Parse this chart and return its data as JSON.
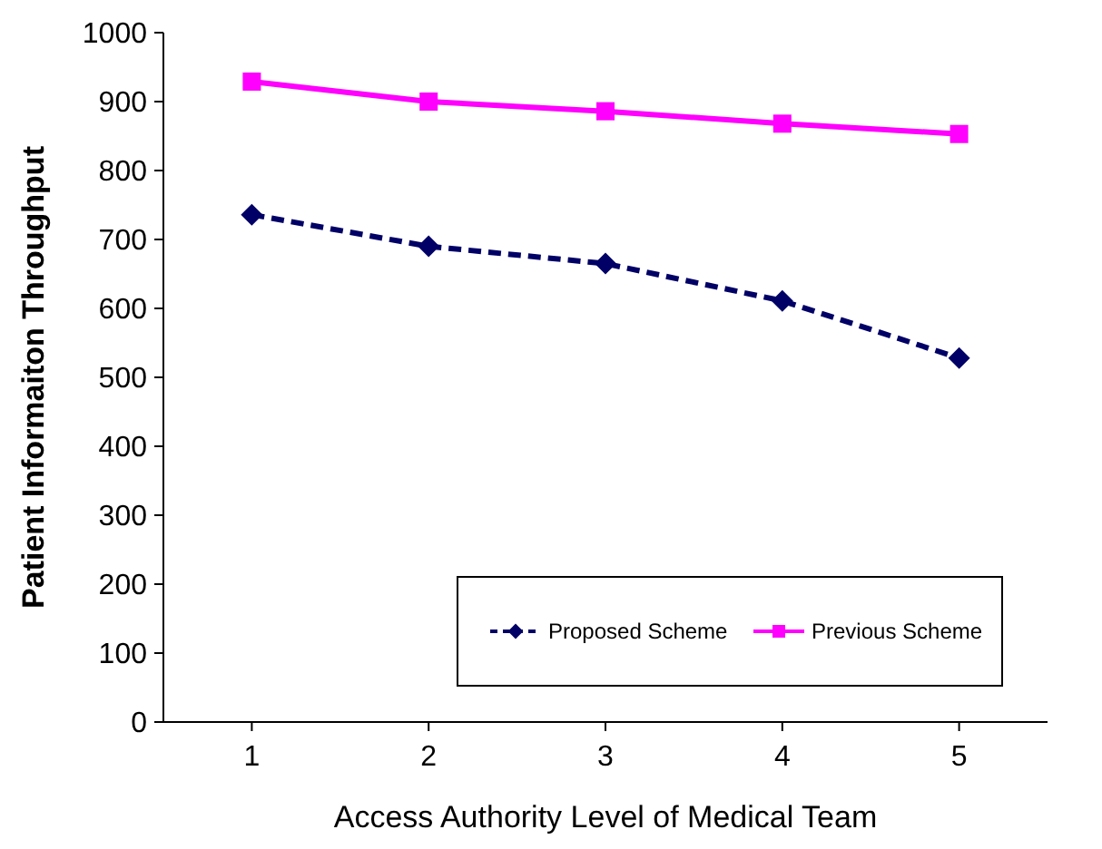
{
  "chart_data": {
    "type": "line",
    "xlabel": "Access Authority Level of Medical Team",
    "ylabel": "Patient Informaiton Throughput",
    "categories": [
      "1",
      "2",
      "3",
      "4",
      "5"
    ],
    "series": [
      {
        "name": "Proposed Scheme",
        "color": "#000066",
        "values": [
          736,
          690,
          665,
          611,
          528
        ],
        "marker": "diamond",
        "line_style": "dashed"
      },
      {
        "name": "Previous Scheme",
        "color": "#ff00ff",
        "values": [
          929,
          900,
          886,
          868,
          853
        ],
        "marker": "square",
        "line_style": "solid"
      }
    ],
    "ylim": [
      0,
      1000
    ],
    "yticks": [
      0,
      100,
      200,
      300,
      400,
      500,
      600,
      700,
      800,
      900,
      1000
    ],
    "grid": false,
    "legend": "bottom right"
  }
}
